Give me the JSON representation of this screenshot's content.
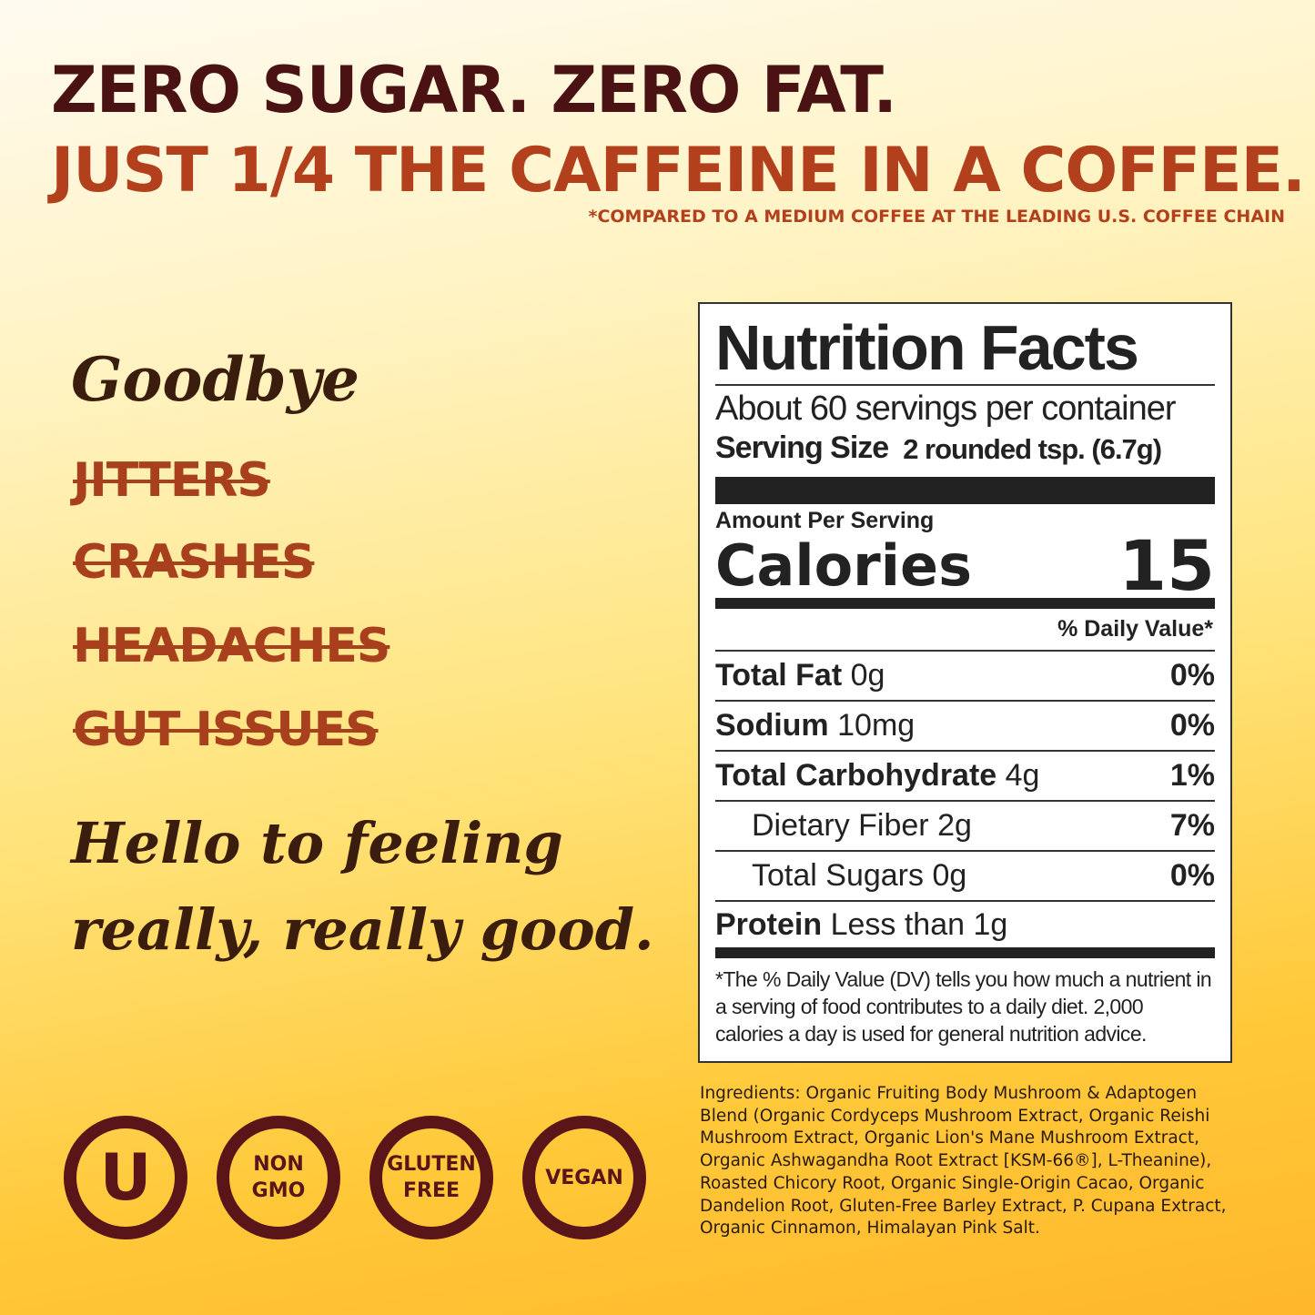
{
  "headline": {
    "line1": "ZERO SUGAR. ZERO FAT.",
    "line2": "JUST 1/4 THE CAFFEINE IN A COFFEE.",
    "footnote": "*COMPARED TO A MEDIUM COFFEE AT THE LEADING U.S. COFFEE CHAIN"
  },
  "left": {
    "goodbye": "Goodbye",
    "struck": [
      "JITTERS",
      "CRASHES",
      "HEADACHES",
      "GUT ISSUES"
    ],
    "hello_line1": "Hello to feeling",
    "hello_line2": "really, really good."
  },
  "badges": [
    "U",
    "NON GMO",
    "GLUTEN FREE",
    "VEGAN"
  ],
  "nutrition": {
    "title": "Nutrition Facts",
    "servings": "About 60 servings per container",
    "serving_size_label": "Serving Size",
    "serving_size_value": "2 rounded tsp. (6.7g)",
    "amount_per_serving": "Amount Per Serving",
    "calories_label": "Calories",
    "calories_value": "15",
    "dv_header": "% Daily Value*",
    "rows": [
      {
        "name": "Total Fat",
        "amount": "0g",
        "dv": "0%"
      },
      {
        "name": "Sodium",
        "amount": "10mg",
        "dv": "0%"
      },
      {
        "name": "Total Carbohydrate",
        "amount": "4g",
        "dv": "1%"
      },
      {
        "name": "Dietary Fiber",
        "amount": "2g",
        "dv": "7%"
      },
      {
        "name": "Total Sugars",
        "amount": "0g",
        "dv": "0%"
      },
      {
        "name": "Protein",
        "amount": "Less than 1g",
        "dv": ""
      }
    ],
    "footnote": "*The % Daily Value (DV) tells you how much a nutrient in a serving of food contributes to a daily diet. 2,000 calories a day is used for general nutrition advice."
  },
  "ingredients": "Ingredients: Organic Fruiting Body Mushroom & Adaptogen Blend (Organic Cordyceps Mushroom Extract, Organic Reishi Mushroom Extract, Organic Lion's Mane Mushroom Extract, Organic Ashwagandha Root Extract [KSM-66®], L-Theanine), Roasted Chicory Root, Organic Single-Origin Cacao, Organic Dandelion Root, Gluten-Free Barley Extract, P. Cupana Extract, Organic Cinnamon, Himalayan Pink Salt.",
  "colors": {
    "maroon": "#4a1212",
    "rust": "#b3401d",
    "badge": "#5a1518"
  }
}
